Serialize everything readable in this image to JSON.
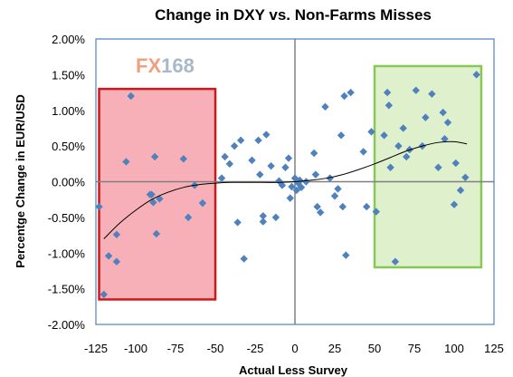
{
  "chart_data": {
    "type": "scatter",
    "title": "Change in DXY vs. Non-Farms Misses",
    "xlabel": "Actual Less Survey",
    "ylabel": "Percentge Change in EUR/USD",
    "xlim": [
      -125,
      125
    ],
    "ylim": [
      -2.0,
      2.0
    ],
    "x_ticks": [
      -125,
      -100,
      -75,
      -50,
      -25,
      0,
      25,
      50,
      75,
      100,
      125
    ],
    "x_tick_labels": [
      "-125",
      "-100",
      "-75",
      "-50",
      "-25",
      "0",
      "25",
      "50",
      "75",
      "100",
      "125"
    ],
    "y_ticks": [
      2.0,
      1.5,
      1.0,
      0.5,
      0.0,
      -0.5,
      -1.0,
      -1.5,
      -2.0
    ],
    "y_tick_labels": [
      "2.00%",
      "1.50%",
      "1.00%",
      "0.50%",
      "0.00%",
      "-0.50%",
      "-1.00%",
      "-1.50%",
      "-2.00%"
    ],
    "grid": false,
    "watermark": {
      "part1": "FX",
      "part2": "168",
      "color1": "#f0a080",
      "color2": "#a8b8c8"
    },
    "colors": {
      "points": "#4f81bd",
      "red_box_fill": "#f8b0b8",
      "red_box_border": "#d01818",
      "green_box_fill": "#dff0cc",
      "green_box_border": "#88c858",
      "plot_border": "#4f81bd",
      "trend": "#000000"
    },
    "regions": [
      {
        "name": "red",
        "x": [
          -123,
          -50
        ],
        "y": [
          -1.65,
          1.3
        ]
      },
      {
        "name": "green",
        "x": [
          50,
          117
        ],
        "y": [
          -1.2,
          1.62
        ]
      }
    ],
    "trendline": {
      "x": [
        -120,
        -110,
        -100,
        -90,
        -80,
        -70,
        -60,
        -50,
        -40,
        -30,
        -20,
        -10,
        0,
        10,
        20,
        30,
        40,
        50,
        60,
        70,
        80,
        90,
        100,
        108
      ],
      "y": [
        -0.8,
        -0.58,
        -0.4,
        -0.25,
        -0.15,
        -0.08,
        -0.04,
        -0.02,
        -0.01,
        -0.01,
        -0.01,
        -0.01,
        0.0,
        0.02,
        0.05,
        0.1,
        0.17,
        0.25,
        0.34,
        0.43,
        0.5,
        0.55,
        0.56,
        0.53
      ]
    },
    "points": {
      "x": [
        -123,
        -120,
        -117,
        -112,
        -112,
        -106,
        -103,
        -91,
        -90,
        -89,
        -88,
        -87,
        -85,
        -70,
        -67,
        -63,
        -58,
        -46,
        -44,
        -41,
        -38,
        -36,
        -34,
        -32,
        -27,
        -23,
        -22,
        -20,
        -20,
        -18,
        -15,
        -12,
        -10,
        -8,
        -6,
        -4,
        -3,
        -2,
        0,
        1,
        2,
        3,
        4,
        7,
        12,
        13,
        14,
        16,
        19,
        22,
        25,
        27,
        29,
        30,
        31,
        32,
        35,
        43,
        45,
        48,
        51,
        56,
        58,
        59,
        60,
        63,
        65,
        68,
        70,
        72,
        76,
        80,
        82,
        86,
        90,
        93,
        94,
        96,
        100,
        101,
        104,
        107,
        114
      ],
      "y": [
        -0.35,
        -1.58,
        -1.04,
        -0.74,
        -1.12,
        0.28,
        1.2,
        -0.18,
        -0.18,
        -0.29,
        0.35,
        -0.73,
        -0.24,
        0.32,
        -0.5,
        -0.05,
        -0.3,
        0.05,
        0.35,
        0.25,
        0.5,
        -0.57,
        0.58,
        -1.08,
        0.3,
        0.58,
        0.1,
        -0.48,
        -0.56,
        0.66,
        0.22,
        -0.5,
        0.01,
        -0.05,
        0.2,
        0.33,
        -0.23,
        -0.07,
        0.05,
        -0.12,
        -0.02,
        0.02,
        -0.08,
        0.0,
        0.4,
        0.1,
        -0.35,
        -0.43,
        1.05,
        0.05,
        -0.2,
        -0.1,
        0.65,
        -0.35,
        1.2,
        -1.03,
        1.25,
        0.42,
        -0.35,
        0.7,
        -0.42,
        0.65,
        1.25,
        1.07,
        0.2,
        -1.12,
        0.5,
        0.75,
        0.35,
        0.45,
        1.28,
        0.5,
        0.9,
        1.23,
        0.2,
        0.97,
        0.6,
        0.83,
        -0.32,
        0.26,
        -0.12,
        0.06,
        1.5
      ]
    }
  }
}
